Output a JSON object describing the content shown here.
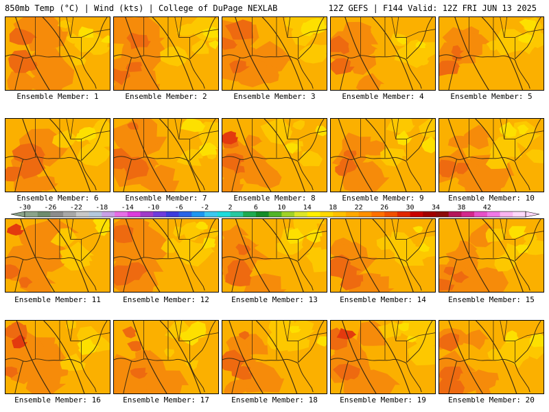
{
  "header": {
    "left": "850mb Temp (°C) | Wind (kts) | College of DuPage NEXLAB",
    "right": "12Z GEFS | F144 Valid: 12Z FRI JUN 13 2025"
  },
  "panels": [
    {
      "caption": "Ensemble Member: 1"
    },
    {
      "caption": "Ensemble Member: 2"
    },
    {
      "caption": "Ensemble Member: 3"
    },
    {
      "caption": "Ensemble Member: 4"
    },
    {
      "caption": "Ensemble Member: 5"
    },
    {
      "caption": "Ensemble Member: 6"
    },
    {
      "caption": "Ensemble Member: 7"
    },
    {
      "caption": "Ensemble Member: 8"
    },
    {
      "caption": "Ensemble Member: 9"
    },
    {
      "caption": "Ensemble Member: 10"
    },
    {
      "caption": "Ensemble Member: 11"
    },
    {
      "caption": "Ensemble Member: 12"
    },
    {
      "caption": "Ensemble Member: 13"
    },
    {
      "caption": "Ensemble Member: 14"
    },
    {
      "caption": "Ensemble Member: 15"
    },
    {
      "caption": "Ensemble Member: 16"
    },
    {
      "caption": "Ensemble Member: 17"
    },
    {
      "caption": "Ensemble Member: 18"
    },
    {
      "caption": "Ensemble Member: 19"
    },
    {
      "caption": "Ensemble Member: 20"
    }
  ],
  "colorbar": {
    "labels": [
      "-30",
      "-26",
      "-22",
      "-18",
      "-14",
      "-10",
      "-6",
      "-2",
      "2",
      "6",
      "10",
      "14",
      "18",
      "22",
      "26",
      "30",
      "34",
      "38",
      "42"
    ],
    "colors": [
      "#8aa38a",
      "#6d8c6d",
      "#8c8c8c",
      "#a8a8a8",
      "#c8c8c8",
      "#b4c8dc",
      "#c8a0e6",
      "#e66ee6",
      "#dc3cdc",
      "#a03cc8",
      "#6e3cdc",
      "#3c3cdc",
      "#2864e6",
      "#1e96f0",
      "#3cc8f0",
      "#1edcdc",
      "#28c8a0",
      "#1eaa50",
      "#148c28",
      "#50b428",
      "#a0d228",
      "#dce628",
      "#fff000",
      "#ffd800",
      "#ffc000",
      "#ffa800",
      "#ff9000",
      "#ff7000",
      "#f05000",
      "#e02800",
      "#c80000",
      "#a00000",
      "#8c0a0a",
      "#b4145a",
      "#d2288c",
      "#e650c8",
      "#f078e6",
      "#fab4f0",
      "#ffd8fa"
    ]
  }
}
